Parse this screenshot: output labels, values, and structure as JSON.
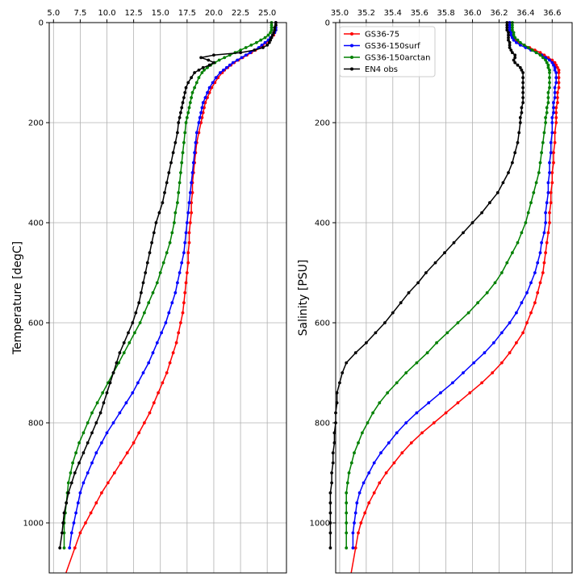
{
  "chart_data": [
    {
      "type": "line",
      "xlabel": "",
      "ylabel": "Temperature [degC]",
      "xlim": [
        4.6,
        26.8
      ],
      "ylim": [
        1100,
        0
      ],
      "x_ticks": [
        "5.0",
        "7.5",
        "10.0",
        "12.5",
        "15.0",
        "17.5",
        "20.0",
        "22.5",
        "25.0"
      ],
      "y_ticks": [
        "0",
        "200",
        "400",
        "600",
        "800",
        "1000"
      ],
      "grid": true,
      "depth": [
        0,
        5,
        10,
        15,
        20,
        25,
        30,
        35,
        40,
        45,
        50,
        55,
        60,
        65,
        70,
        75,
        80,
        85,
        90,
        95,
        100,
        110,
        120,
        130,
        140,
        150,
        160,
        170,
        180,
        190,
        200,
        220,
        240,
        260,
        280,
        300,
        320,
        340,
        360,
        380,
        400,
        420,
        440,
        460,
        480,
        500,
        520,
        540,
        560,
        580,
        600,
        620,
        640,
        660,
        680,
        700,
        720,
        740,
        760,
        780,
        800,
        820,
        840,
        860,
        880,
        900,
        920,
        940,
        960,
        980,
        1000,
        1020,
        1050
      ],
      "series": [
        {
          "name": "GS36-75",
          "color": "#ff0000",
          "values": [
            25.8,
            25.8,
            25.8,
            25.8,
            25.7,
            25.6,
            25.4,
            25.2,
            24.9,
            24.6,
            24.3,
            23.9,
            23.5,
            23.1,
            22.7,
            22.3,
            21.9,
            21.6,
            21.3,
            21.0,
            20.8,
            20.4,
            20.1,
            19.8,
            19.6,
            19.4,
            19.2,
            19.1,
            19.0,
            18.9,
            18.8,
            18.6,
            18.4,
            18.3,
            18.2,
            18.1,
            18.0,
            18.0,
            17.9,
            17.9,
            17.8,
            17.7,
            17.7,
            17.6,
            17.6,
            17.5,
            17.4,
            17.3,
            17.2,
            17.1,
            16.9,
            16.7,
            16.5,
            16.2,
            15.9,
            15.6,
            15.2,
            14.8,
            14.4,
            14.0,
            13.5,
            13.0,
            12.5,
            11.9,
            11.3,
            10.7,
            10.1,
            9.5,
            9.0,
            8.5,
            8.0,
            7.5,
            7.0
          ]
        },
        {
          "name": "GS36-150surf",
          "color": "#0000ff",
          "values": [
            25.8,
            25.8,
            25.8,
            25.8,
            25.7,
            25.5,
            25.3,
            25.1,
            24.8,
            24.5,
            24.2,
            23.8,
            23.4,
            23.0,
            22.6,
            22.2,
            21.8,
            21.5,
            21.2,
            20.9,
            20.6,
            20.2,
            19.9,
            19.6,
            19.4,
            19.2,
            19.0,
            18.9,
            18.8,
            18.7,
            18.6,
            18.4,
            18.3,
            18.2,
            18.1,
            18.0,
            17.9,
            17.8,
            17.7,
            17.6,
            17.5,
            17.4,
            17.3,
            17.2,
            17.0,
            16.8,
            16.6,
            16.4,
            16.1,
            15.8,
            15.5,
            15.1,
            14.7,
            14.3,
            13.9,
            13.4,
            12.9,
            12.4,
            11.8,
            11.2,
            10.6,
            10.0,
            9.5,
            9.0,
            8.6,
            8.2,
            7.8,
            7.5,
            7.3,
            7.1,
            6.9,
            6.7,
            6.5
          ]
        },
        {
          "name": "GS36-150arctan",
          "color": "#008000",
          "values": [
            25.4,
            25.4,
            25.4,
            25.4,
            25.3,
            25.1,
            24.8,
            24.4,
            24.0,
            23.5,
            23.0,
            22.5,
            22.0,
            21.5,
            21.0,
            20.5,
            20.1,
            19.7,
            19.4,
            19.1,
            18.9,
            18.6,
            18.4,
            18.2,
            18.0,
            17.9,
            17.8,
            17.7,
            17.6,
            17.5,
            17.4,
            17.3,
            17.2,
            17.1,
            17.0,
            16.9,
            16.8,
            16.7,
            16.6,
            16.4,
            16.3,
            16.1,
            15.9,
            15.6,
            15.3,
            15.0,
            14.7,
            14.3,
            13.9,
            13.5,
            13.1,
            12.6,
            12.1,
            11.6,
            11.1,
            10.6,
            10.1,
            9.6,
            9.1,
            8.6,
            8.2,
            7.8,
            7.4,
            7.1,
            6.8,
            6.6,
            6.4,
            6.3,
            6.2,
            6.1,
            6.0,
            6.0,
            6.0
          ]
        },
        {
          "name": "EN4 obs",
          "color": "#000000",
          "values": [
            25.8,
            25.8,
            25.7,
            25.7,
            25.6,
            25.5,
            25.4,
            25.3,
            25.2,
            25.0,
            24.6,
            23.8,
            22.5,
            20.0,
            18.8,
            19.5,
            20.0,
            19.6,
            19.0,
            18.6,
            18.2,
            17.9,
            17.6,
            17.4,
            17.3,
            17.2,
            17.1,
            17.0,
            16.9,
            16.8,
            16.7,
            16.6,
            16.4,
            16.2,
            16.0,
            15.8,
            15.6,
            15.4,
            15.2,
            14.9,
            14.6,
            14.4,
            14.2,
            14.0,
            13.8,
            13.6,
            13.4,
            13.2,
            13.0,
            12.7,
            12.4,
            12.0,
            11.6,
            11.2,
            10.9,
            10.6,
            10.3,
            10.0,
            9.7,
            9.4,
            9.0,
            8.6,
            8.2,
            7.8,
            7.4,
            7.0,
            6.7,
            6.4,
            6.2,
            6.0,
            5.9,
            5.8,
            5.6
          ]
        }
      ]
    },
    {
      "type": "line",
      "xlabel": "",
      "ylabel": "Salinity [PSU]",
      "xlim": [
        34.97,
        36.75
      ],
      "ylim": [
        1100,
        0
      ],
      "x_ticks": [
        "35.0",
        "35.2",
        "35.4",
        "35.6",
        "35.8",
        "36.0",
        "36.2",
        "36.4",
        "36.6"
      ],
      "y_ticks": [
        "0",
        "200",
        "400",
        "600",
        "800",
        "1000"
      ],
      "grid": true,
      "legend": "top-left",
      "depth": [
        0,
        5,
        10,
        15,
        20,
        25,
        30,
        35,
        40,
        45,
        50,
        55,
        60,
        65,
        70,
        75,
        80,
        85,
        90,
        95,
        100,
        110,
        120,
        130,
        140,
        150,
        160,
        170,
        180,
        190,
        200,
        220,
        240,
        260,
        280,
        300,
        320,
        340,
        360,
        380,
        400,
        420,
        440,
        460,
        480,
        500,
        520,
        540,
        560,
        580,
        600,
        620,
        640,
        660,
        680,
        700,
        720,
        740,
        760,
        780,
        800,
        820,
        840,
        860,
        880,
        900,
        920,
        940,
        960,
        980,
        1000,
        1020,
        1050
      ],
      "series": [
        {
          "name": "GS36-75",
          "color": "#ff0000",
          "values": [
            36.28,
            36.28,
            36.28,
            36.28,
            36.29,
            36.29,
            36.3,
            36.32,
            36.35,
            36.39,
            36.43,
            36.47,
            36.51,
            36.54,
            36.57,
            36.6,
            36.62,
            36.63,
            36.64,
            36.65,
            36.65,
            36.65,
            36.65,
            36.65,
            36.64,
            36.64,
            36.64,
            36.63,
            36.63,
            36.63,
            36.63,
            36.62,
            36.62,
            36.61,
            36.61,
            36.6,
            36.6,
            36.59,
            36.59,
            36.58,
            36.58,
            36.57,
            36.56,
            36.55,
            36.54,
            36.53,
            36.51,
            36.49,
            36.47,
            36.44,
            36.41,
            36.38,
            36.33,
            36.28,
            36.22,
            36.15,
            36.07,
            35.98,
            35.89,
            35.8,
            35.71,
            35.62,
            35.54,
            35.47,
            35.41,
            35.35,
            35.3,
            35.26,
            35.22,
            35.19,
            35.16,
            35.14,
            35.12
          ]
        },
        {
          "name": "GS36-150surf",
          "color": "#0000ff",
          "values": [
            36.28,
            36.28,
            36.28,
            36.28,
            36.29,
            36.29,
            36.3,
            36.31,
            36.33,
            36.36,
            36.4,
            36.44,
            36.48,
            36.52,
            36.55,
            36.58,
            36.6,
            36.61,
            36.62,
            36.62,
            36.63,
            36.63,
            36.63,
            36.62,
            36.62,
            36.62,
            36.61,
            36.61,
            36.61,
            36.6,
            36.6,
            36.6,
            36.59,
            36.59,
            36.58,
            36.58,
            36.57,
            36.57,
            36.56,
            36.55,
            36.55,
            36.54,
            36.52,
            36.51,
            36.49,
            36.47,
            36.44,
            36.41,
            36.37,
            36.33,
            36.28,
            36.22,
            36.16,
            36.09,
            36.01,
            35.93,
            35.85,
            35.76,
            35.67,
            35.58,
            35.5,
            35.43,
            35.37,
            35.31,
            35.26,
            35.22,
            35.18,
            35.15,
            35.13,
            35.12,
            35.11,
            35.1,
            35.1
          ]
        },
        {
          "name": "GS36-150arctan",
          "color": "#008000",
          "values": [
            36.3,
            36.3,
            36.3,
            36.3,
            36.31,
            36.31,
            36.32,
            36.34,
            36.36,
            36.39,
            36.42,
            36.45,
            36.48,
            36.51,
            36.53,
            36.55,
            36.56,
            36.57,
            36.57,
            36.58,
            36.58,
            36.58,
            36.58,
            36.58,
            36.57,
            36.57,
            36.57,
            36.56,
            36.56,
            36.55,
            36.55,
            36.54,
            36.53,
            36.52,
            36.51,
            36.5,
            36.48,
            36.46,
            36.44,
            36.42,
            36.4,
            36.37,
            36.34,
            36.3,
            36.26,
            36.22,
            36.17,
            36.11,
            36.04,
            35.97,
            35.89,
            35.81,
            35.73,
            35.66,
            35.58,
            35.5,
            35.43,
            35.36,
            35.3,
            35.25,
            35.21,
            35.17,
            35.14,
            35.11,
            35.09,
            35.07,
            35.06,
            35.05,
            35.05,
            35.05,
            35.05,
            35.05,
            35.05
          ]
        },
        {
          "name": "EN4 obs",
          "color": "#000000",
          "values": [
            36.26,
            36.26,
            36.26,
            36.26,
            36.27,
            36.27,
            36.27,
            36.27,
            36.28,
            36.28,
            36.28,
            36.29,
            36.3,
            36.32,
            36.32,
            36.31,
            36.32,
            36.34,
            36.36,
            36.37,
            36.38,
            36.38,
            36.38,
            36.38,
            36.38,
            36.38,
            36.38,
            36.37,
            36.37,
            36.36,
            36.36,
            36.35,
            36.34,
            36.32,
            36.3,
            36.27,
            36.23,
            36.19,
            36.13,
            36.07,
            36.0,
            35.93,
            35.86,
            35.79,
            35.72,
            35.65,
            35.59,
            35.52,
            35.46,
            35.4,
            35.34,
            35.27,
            35.2,
            35.12,
            35.05,
            35.02,
            35.0,
            34.98,
            34.98,
            34.97,
            34.97,
            34.96,
            34.96,
            34.95,
            34.95,
            34.94,
            34.94,
            34.93,
            34.93,
            34.93,
            34.93,
            34.93,
            34.93
          ]
        }
      ]
    }
  ]
}
